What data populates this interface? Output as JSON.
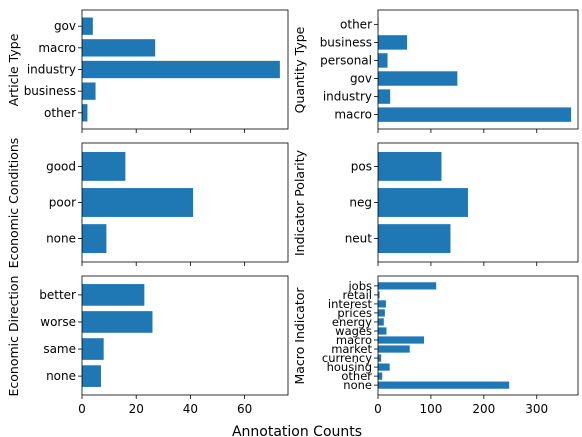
{
  "figure": {
    "supxlabel": "Annotation Counts",
    "bar_color": "#1f77b4"
  },
  "chart_data": [
    {
      "type": "bar",
      "orientation": "horizontal",
      "ylabel": "Article Type",
      "categories": [
        "gov",
        "macro",
        "industry",
        "business",
        "other"
      ],
      "values": [
        4,
        27,
        73,
        5,
        2
      ],
      "xlim": [
        0,
        76
      ],
      "xticks": [
        0,
        20,
        40,
        60
      ],
      "show_x_ticklabels": false,
      "grid": false
    },
    {
      "type": "bar",
      "orientation": "horizontal",
      "ylabel": "Quantity Type",
      "categories": [
        "other",
        "business",
        "personal",
        "gov",
        "industry",
        "macro"
      ],
      "values": [
        1,
        55,
        18,
        150,
        23,
        365
      ],
      "xlim": [
        0,
        378
      ],
      "xticks": [
        0,
        100,
        200,
        300
      ],
      "show_x_ticklabels": false,
      "grid": false
    },
    {
      "type": "bar",
      "orientation": "horizontal",
      "ylabel": "Economic Conditions",
      "categories": [
        "good",
        "poor",
        "none"
      ],
      "values": [
        16,
        41,
        9
      ],
      "xlim": [
        0,
        76
      ],
      "xticks": [
        0,
        20,
        40,
        60
      ],
      "show_x_ticklabels": false,
      "grid": false
    },
    {
      "type": "bar",
      "orientation": "horizontal",
      "ylabel": "Indicator Polarity",
      "categories": [
        "pos",
        "neg",
        "neut"
      ],
      "values": [
        120,
        170,
        137
      ],
      "xlim": [
        0,
        378
      ],
      "xticks": [
        0,
        100,
        200,
        300
      ],
      "show_x_ticklabels": false,
      "grid": false
    },
    {
      "type": "bar",
      "orientation": "horizontal",
      "ylabel": "Economic Direction",
      "categories": [
        "better",
        "worse",
        "same",
        "none"
      ],
      "values": [
        23,
        26,
        8,
        7
      ],
      "xlim": [
        0,
        76
      ],
      "xticks": [
        0,
        20,
        40,
        60
      ],
      "show_x_ticklabels": true,
      "grid": false
    },
    {
      "type": "bar",
      "orientation": "horizontal",
      "ylabel": "Macro Indicator",
      "categories": [
        "jobs",
        "retail",
        "interest",
        "prices",
        "energy",
        "wages",
        "macro",
        "market",
        "currency",
        "housing",
        "other",
        "none"
      ],
      "values": [
        110,
        3,
        15,
        13,
        11,
        16,
        87,
        60,
        6,
        22,
        8,
        248
      ],
      "xlim": [
        0,
        378
      ],
      "xticks": [
        0,
        100,
        200,
        300
      ],
      "show_x_ticklabels": true,
      "grid": false
    }
  ]
}
